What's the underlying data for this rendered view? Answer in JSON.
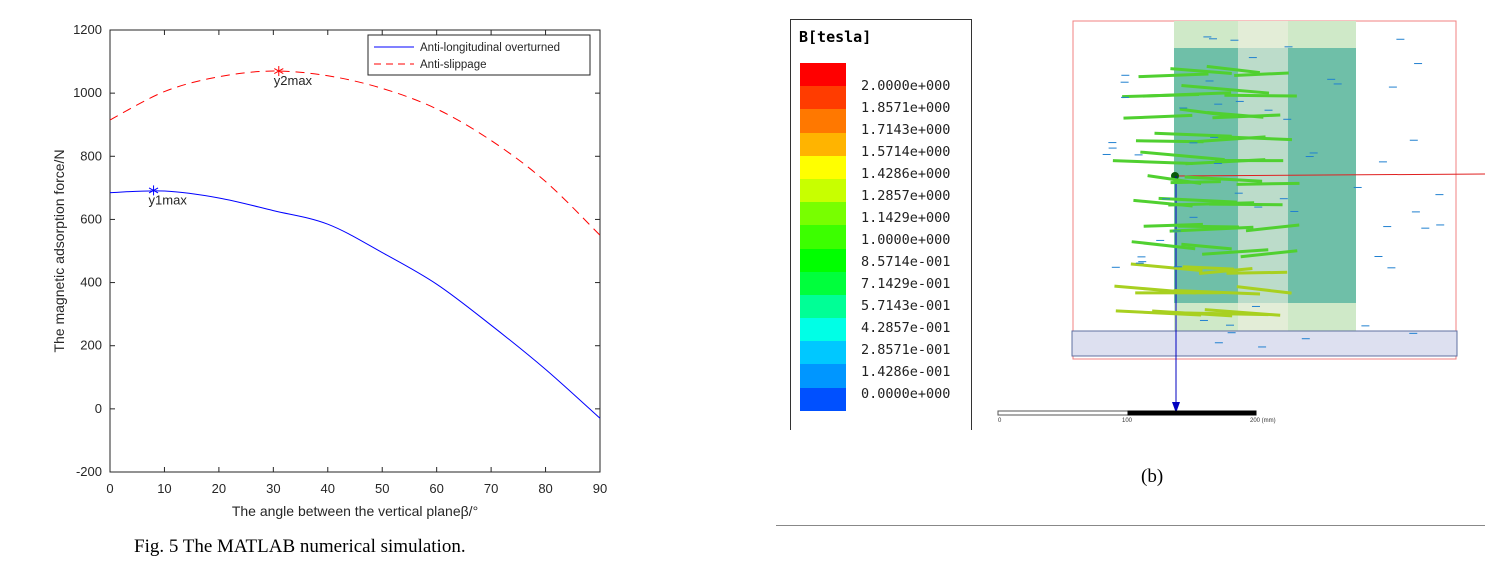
{
  "chart_data": {
    "type": "line",
    "title": "",
    "xlabel": "The angle between the vertical planeβ/°",
    "ylabel": "The magnetic adsorption force/N",
    "xlim": [
      0,
      90
    ],
    "ylim": [
      -200,
      1200
    ],
    "xticks": [
      "0",
      "10",
      "20",
      "30",
      "40",
      "50",
      "60",
      "70",
      "80",
      "90"
    ],
    "yticks": [
      "-200",
      "0",
      "200",
      "400",
      "600",
      "800",
      "1000",
      "1200"
    ],
    "grid": false,
    "legend_position": "top-right",
    "x": [
      0,
      10,
      20,
      30,
      40,
      50,
      60,
      70,
      80,
      90
    ],
    "series": [
      {
        "name": "Anti-longitudinal overturned",
        "color": "#0000ff",
        "style": "solid",
        "values": [
          685,
          690,
          668,
          628,
          585,
          495,
          395,
          265,
          125,
          -30
        ]
      },
      {
        "name": "Anti-slippage",
        "color": "#ff0000",
        "style": "dashed",
        "values": [
          915,
          1005,
          1052,
          1070,
          1055,
          1015,
          950,
          850,
          720,
          550
        ]
      }
    ],
    "annotations": [
      {
        "text": "y1max",
        "x": 8,
        "y": 692,
        "series": 0
      },
      {
        "text": "y2max",
        "x": 31,
        "y": 1070,
        "series": 1
      }
    ]
  },
  "fig5_caption": "Fig. 5 The MATLAB numerical simulation.",
  "fig_b": {
    "legend_title": "B[tesla]",
    "colors": [
      "#ff0000",
      "#ff3c00",
      "#ff7800",
      "#ffb400",
      "#ffff00",
      "#c8ff00",
      "#78ff00",
      "#3cff00",
      "#00ff00",
      "#00ff3c",
      "#00ff96",
      "#00ffe6",
      "#00c8ff",
      "#0096ff",
      "#0050ff",
      "#0000ff"
    ],
    "labels": [
      "2.0000e+000",
      "1.8571e+000",
      "1.7143e+000",
      "1.5714e+000",
      "1.4286e+000",
      "1.2857e+000",
      "1.1429e+000",
      "1.0000e+000",
      "8.5714e-001",
      "7.1429e-001",
      "5.7143e-001",
      "4.2857e-001",
      "2.8571e-001",
      "1.4286e-001",
      "0.0000e+000"
    ],
    "scale_labels": [
      "0",
      "100",
      "200 (mm)"
    ],
    "caption": "(b)"
  }
}
